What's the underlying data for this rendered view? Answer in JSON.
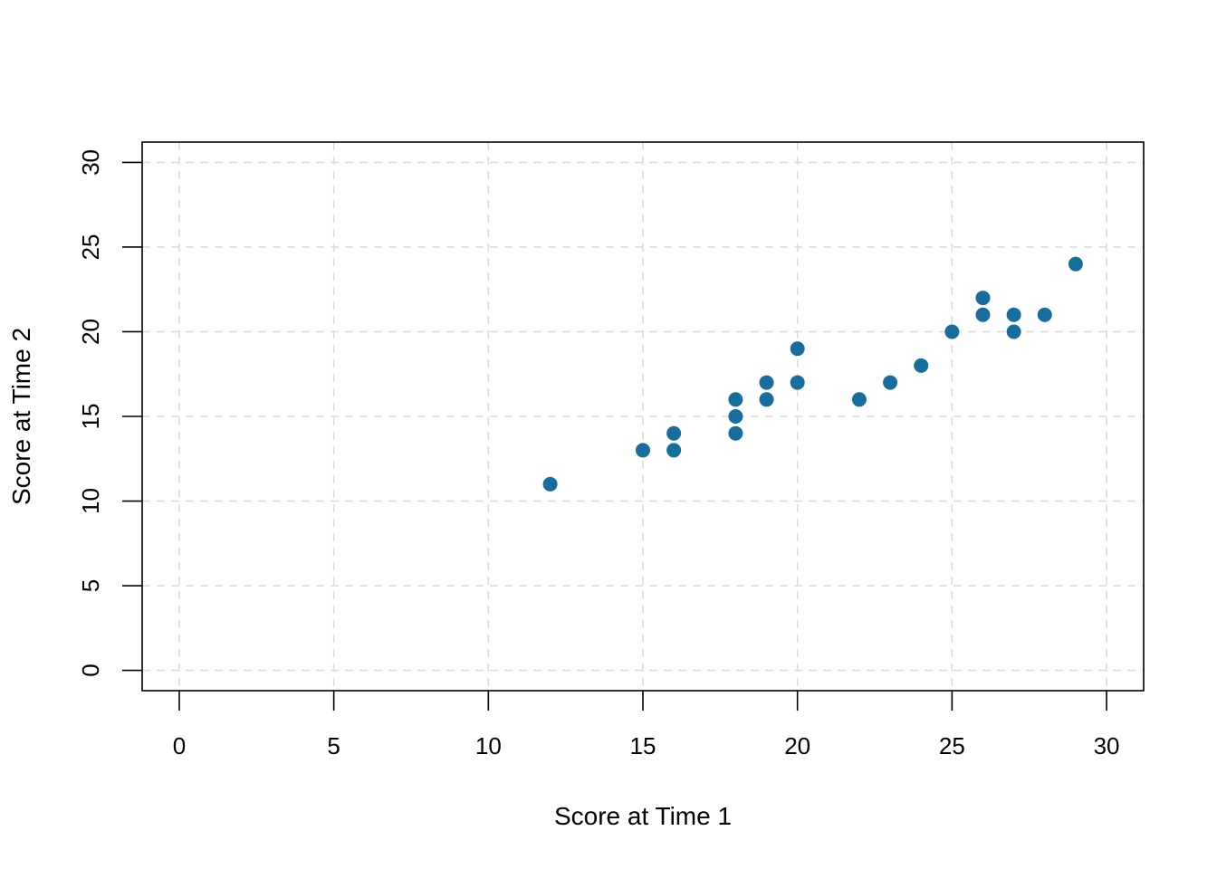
{
  "chart_data": {
    "type": "scatter",
    "xlabel": "Score at Time 1",
    "ylabel": "Score at Time 2",
    "xlim": [
      -1.2,
      31.2
    ],
    "ylim": [
      -1.2,
      31.2
    ],
    "x_ticks": [
      0,
      5,
      10,
      15,
      20,
      25,
      30
    ],
    "y_ticks": [
      0,
      5,
      10,
      15,
      20,
      25,
      30
    ],
    "grid": true,
    "point_color": "#176d9c",
    "points": [
      {
        "x": 12,
        "y": 11
      },
      {
        "x": 15,
        "y": 13
      },
      {
        "x": 16,
        "y": 13
      },
      {
        "x": 16,
        "y": 14
      },
      {
        "x": 18,
        "y": 14
      },
      {
        "x": 18,
        "y": 15
      },
      {
        "x": 18,
        "y": 16
      },
      {
        "x": 19,
        "y": 16
      },
      {
        "x": 19,
        "y": 17
      },
      {
        "x": 20,
        "y": 17
      },
      {
        "x": 20,
        "y": 19
      },
      {
        "x": 22,
        "y": 16
      },
      {
        "x": 23,
        "y": 17
      },
      {
        "x": 24,
        "y": 18
      },
      {
        "x": 25,
        "y": 20
      },
      {
        "x": 26,
        "y": 21
      },
      {
        "x": 26,
        "y": 22
      },
      {
        "x": 27,
        "y": 20
      },
      {
        "x": 27,
        "y": 21
      },
      {
        "x": 28,
        "y": 21
      },
      {
        "x": 29,
        "y": 24
      }
    ]
  }
}
